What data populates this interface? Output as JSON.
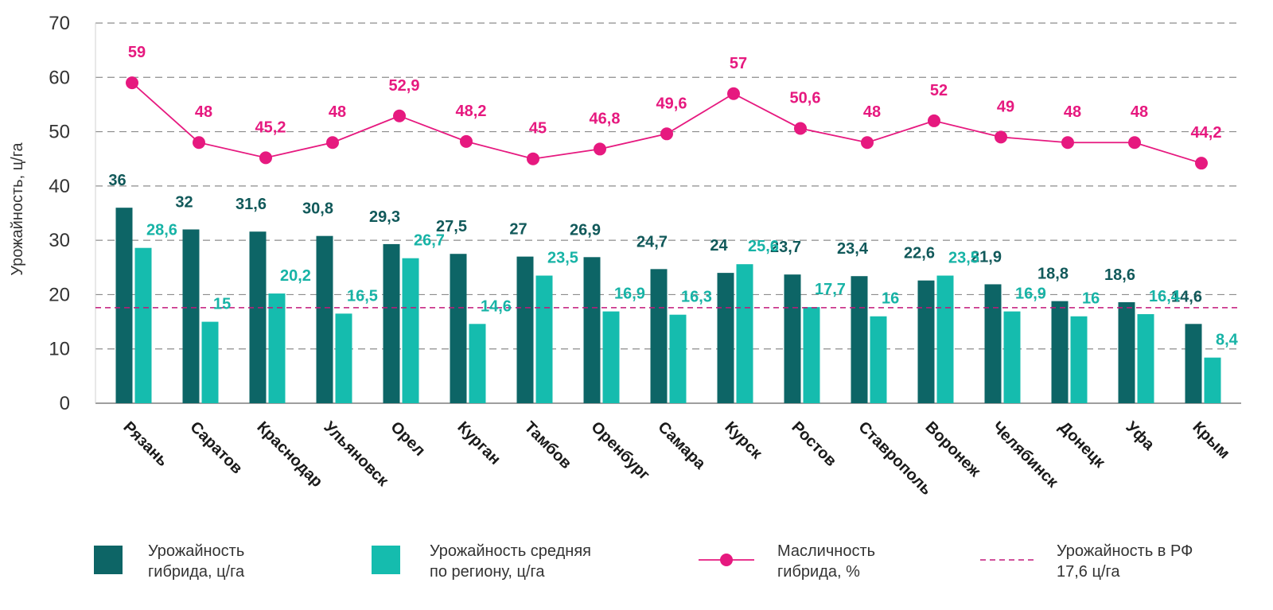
{
  "chart_data": {
    "type": "bar",
    "ylabel": "Урожайность, ц/га",
    "ylim": [
      0,
      70
    ],
    "yticks": [
      0,
      10,
      20,
      30,
      40,
      50,
      60,
      70
    ],
    "grid": "horizontal-dashed",
    "legend_placement": "bottom",
    "categories": [
      "Рязань",
      "Саратов",
      "Краснодар",
      "Ульяновск",
      "Орел",
      "Курган",
      "Тамбов",
      "Оренбург",
      "Самара",
      "Курск",
      "Ростов",
      "Ставрополь",
      "Воронеж",
      "Челябинск",
      "Донецк",
      "Уфа",
      "Крым"
    ],
    "series": [
      {
        "name": "Урожайность гибрида, ц/га",
        "legend_lines": [
          "Урожайность",
          "гибрида, ц/га"
        ],
        "kind": "bar",
        "color": "#0d6566",
        "values": [
          36,
          32,
          31.6,
          30.8,
          29.3,
          27.5,
          27,
          26.9,
          24.7,
          24,
          23.7,
          23.4,
          22.6,
          21.9,
          18.8,
          18.6,
          14.6
        ],
        "labels": [
          "36",
          "32",
          "31,6",
          "30,8",
          "29,3",
          "27,5",
          "27",
          "26,9",
          "24,7",
          "24",
          "23,7",
          "23,4",
          "22,6",
          "21,9",
          "18,8",
          "18,6",
          "14,6"
        ]
      },
      {
        "name": "Урожайность средняя по региону, ц/га",
        "legend_lines": [
          "Урожайность средняя",
          "по региону, ц/га"
        ],
        "kind": "bar",
        "color": "#15bcae",
        "values": [
          28.6,
          15,
          20.2,
          16.5,
          26.7,
          14.6,
          23.5,
          16.9,
          16.3,
          25.6,
          17.7,
          16,
          23.5,
          16.9,
          16,
          16.4,
          8.4
        ],
        "labels": [
          "28,6",
          "15",
          "20,2",
          "16,5",
          "26,7",
          "14,6",
          "23,5",
          "16,9",
          "16,3",
          "25,6",
          "17,7",
          "16",
          "23,5",
          "16,9",
          "16",
          "16,4",
          "8,4"
        ]
      },
      {
        "name": "Масличность гибрида, %",
        "legend_lines": [
          "Масличность",
          "гибрида, %"
        ],
        "kind": "line",
        "color": "#e6197f",
        "values": [
          59,
          48,
          45.2,
          48,
          52.9,
          48.2,
          45,
          46.8,
          49.6,
          57,
          50.6,
          48,
          52,
          49,
          48,
          48,
          44.2
        ],
        "labels": [
          "59",
          "48",
          "45,2",
          "48",
          "52,9",
          "48,2",
          "45",
          "46,8",
          "49,6",
          "57",
          "50,6",
          "48",
          "52",
          "49",
          "48",
          "48",
          "44,2"
        ]
      }
    ],
    "reference_line": {
      "name": "Урожайность в РФ 17,6 ц/га",
      "legend_lines": [
        "Урожайность в РФ",
        "17,6 ц/га"
      ],
      "value": 17.6,
      "color": "#c2187a",
      "style": "dashed"
    }
  }
}
